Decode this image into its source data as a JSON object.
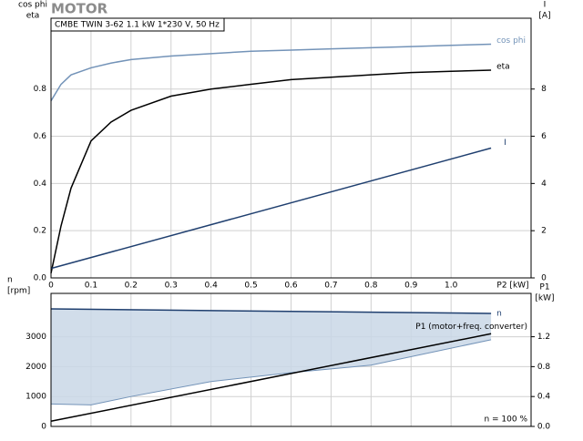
{
  "title": "MOTOR",
  "chart_data": [
    {
      "type": "line",
      "subtitle": "CMBE TWIN 3-62   1.1 kW   1*230 V, 50 Hz",
      "ylabel": [
        "cos phi",
        "eta"
      ],
      "y2label": [
        "I",
        "[A]"
      ],
      "xlabel": "P2 [kW]",
      "xlim": [
        0,
        1.2
      ],
      "ylim": [
        0,
        1.1
      ],
      "y2lim": [
        0,
        11
      ],
      "grid": true,
      "xticks": [
        0,
        0.1,
        0.2,
        0.3,
        0.4,
        0.5,
        0.6,
        0.7,
        0.8,
        0.9,
        {
          "value": 1,
          "label": "1.0"
        }
      ],
      "yticks": [
        {
          "value": 0,
          "label": "0.0"
        },
        0.2,
        0.4,
        0.6,
        0.8
      ],
      "y2ticks": [
        0,
        2,
        4,
        6,
        8
      ],
      "series": [
        {
          "name": "cos phi",
          "color": "#7393b8",
          "x": [
            0,
            0.025,
            0.05,
            0.1,
            0.15,
            0.2,
            0.3,
            0.4,
            0.5,
            0.6,
            0.7,
            0.8,
            0.9,
            1.0,
            1.1
          ],
          "values": [
            0.75,
            0.82,
            0.86,
            0.89,
            0.91,
            0.925,
            0.94,
            0.95,
            0.96,
            0.965,
            0.97,
            0.975,
            0.98,
            0.985,
            0.99
          ]
        },
        {
          "name": "eta",
          "color": "#000000",
          "x": [
            0,
            0.025,
            0.05,
            0.1,
            0.15,
            0.2,
            0.3,
            0.4,
            0.5,
            0.6,
            0.7,
            0.8,
            0.9,
            1.0,
            1.1
          ],
          "values": [
            0.02,
            0.22,
            0.38,
            0.58,
            0.66,
            0.71,
            0.77,
            0.8,
            0.82,
            0.84,
            0.85,
            0.86,
            0.87,
            0.875,
            0.88
          ]
        },
        {
          "name": "I",
          "color": "#1f3f6f",
          "axis": "y2",
          "x": [
            0,
            1.1
          ],
          "values": [
            0.4,
            5.5
          ]
        }
      ]
    },
    {
      "type": "line",
      "ylabel": [
        "n",
        "[rpm]"
      ],
      "y2label": [
        "P1",
        "[kW]"
      ],
      "annotation": "n = 100 %",
      "xlim": [
        0,
        1.2
      ],
      "ylim": [
        0,
        4450
      ],
      "y2lim": [
        0,
        1.78
      ],
      "grid": true,
      "yticks": [
        0,
        1000,
        2000,
        3000
      ],
      "y2ticks": [
        {
          "value": 0,
          "label": "0.0"
        },
        0.4,
        0.8,
        1.2
      ],
      "band": {
        "color": "#c9d7e6",
        "x": [
          0,
          0.1,
          0.2,
          0.4,
          0.6,
          0.8,
          1.1
        ],
        "values": [
          750,
          720,
          1000,
          1500,
          1800,
          2050,
          2900
        ]
      },
      "series": [
        {
          "name": "n",
          "color": "#1f3f6f",
          "x": [
            0,
            1.1
          ],
          "values": [
            3930,
            3780
          ]
        },
        {
          "name": "P1 (motor+freq. converter)",
          "color": "#000000",
          "axis": "y2",
          "x": [
            0,
            1.1
          ],
          "values": [
            0.07,
            1.24
          ]
        }
      ]
    }
  ]
}
